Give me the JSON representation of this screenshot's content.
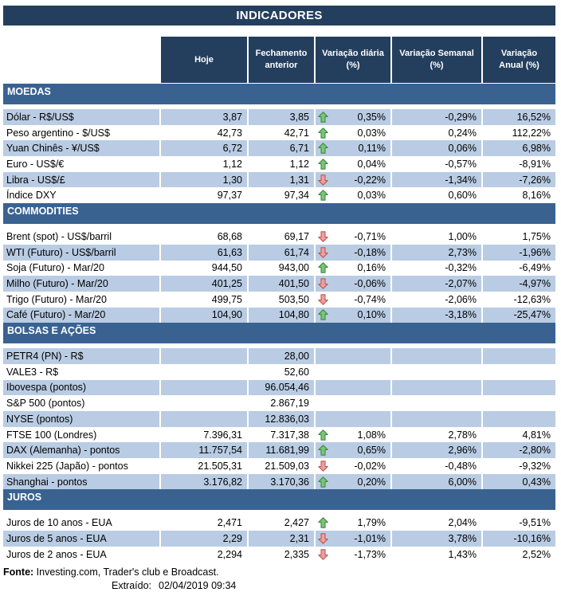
{
  "title": "INDICADORES",
  "columns": [
    "Hoje",
    "Fechamento\nanterior",
    "Variação diária\n(%)",
    "Variação Semanal\n(%)",
    "Variação\nAnual (%)"
  ],
  "colors": {
    "header_navy": "#243f5e",
    "section_blue": "#396291",
    "stripe_blue": "#b9cce3",
    "arrow_up_fill": "#7cc47c",
    "arrow_up_stroke": "#3f8a3f",
    "arrow_down_fill": "#eda0a0",
    "arrow_down_stroke": "#bf5654"
  },
  "icons": {
    "up": "arrow-up-icon (green up arrow)",
    "down": "arrow-down-icon (red down arrow)"
  },
  "sections": [
    {
      "name": "MOEDAS",
      "rows": [
        {
          "label": "Dólar - R$/US$",
          "hoje": "3,87",
          "fechamento": "3,85",
          "arrow": "up",
          "diaria": "0,35%",
          "semanal": "-0,29%",
          "anual": "16,52%"
        },
        {
          "label": "Peso argentino - $/US$",
          "hoje": "42,73",
          "fechamento": "42,71",
          "arrow": "up",
          "diaria": "0,03%",
          "semanal": "0,24%",
          "anual": "112,22%"
        },
        {
          "label": "Yuan Chinês - ¥/US$",
          "hoje": "6,72",
          "fechamento": "6,71",
          "arrow": "up",
          "diaria": "0,11%",
          "semanal": "0,06%",
          "anual": "6,98%"
        },
        {
          "label": "Euro - US$/€",
          "hoje": "1,12",
          "fechamento": "1,12",
          "arrow": "up",
          "diaria": "0,04%",
          "semanal": "-0,57%",
          "anual": "-8,91%"
        },
        {
          "label": "Libra - US$/£",
          "hoje": "1,30",
          "fechamento": "1,31",
          "arrow": "down",
          "diaria": "-0,22%",
          "semanal": "-1,34%",
          "anual": "-7,26%"
        },
        {
          "label": "Índice DXY",
          "hoje": "97,37",
          "fechamento": "97,34",
          "arrow": "up",
          "diaria": "0,03%",
          "semanal": "0,60%",
          "anual": "8,16%"
        }
      ]
    },
    {
      "name": "COMMODITIES",
      "rows": [
        {
          "label": "Brent (spot) - US$/barril",
          "hoje": "68,68",
          "fechamento": "69,17",
          "arrow": "down",
          "diaria": "-0,71%",
          "semanal": "1,00%",
          "anual": "1,75%"
        },
        {
          "label": "WTI (Futuro) - US$/barril",
          "hoje": "61,63",
          "fechamento": "61,74",
          "arrow": "down",
          "diaria": "-0,18%",
          "semanal": "2,73%",
          "anual": "-1,96%"
        },
        {
          "label": "Soja (Futuro) - Mar/20",
          "hoje": "944,50",
          "fechamento": "943,00",
          "arrow": "up",
          "diaria": "0,16%",
          "semanal": "-0,32%",
          "anual": "-6,49%"
        },
        {
          "label": "Milho (Futuro) - Mar/20",
          "hoje": "401,25",
          "fechamento": "401,50",
          "arrow": "down",
          "diaria": "-0,06%",
          "semanal": "-2,07%",
          "anual": "-4,97%"
        },
        {
          "label": "Trigo (Futuro) - Mar/20",
          "hoje": "499,75",
          "fechamento": "503,50",
          "arrow": "down",
          "diaria": "-0,74%",
          "semanal": "-2,06%",
          "anual": "-12,63%"
        },
        {
          "label": "Café (Futuro) - Mar/20",
          "hoje": "104,90",
          "fechamento": "104,80",
          "arrow": "up",
          "diaria": "0,10%",
          "semanal": "-3,18%",
          "anual": "-25,47%"
        }
      ]
    },
    {
      "name": "BOLSAS E AÇÕES",
      "rows": [
        {
          "label": "PETR4 (PN) - R$",
          "hoje": "",
          "fechamento": "28,00",
          "arrow": "",
          "diaria": "",
          "semanal": "",
          "anual": ""
        },
        {
          "label": "VALE3 - R$",
          "hoje": "",
          "fechamento": "52,60",
          "arrow": "",
          "diaria": "",
          "semanal": "",
          "anual": ""
        },
        {
          "label": "Ibovespa (pontos)",
          "hoje": "",
          "fechamento": "96.054,46",
          "arrow": "",
          "diaria": "",
          "semanal": "",
          "anual": ""
        },
        {
          "label": "S&P 500 (pontos)",
          "hoje": "",
          "fechamento": "2.867,19",
          "arrow": "",
          "diaria": "",
          "semanal": "",
          "anual": ""
        },
        {
          "label": "NYSE (pontos)",
          "hoje": "",
          "fechamento": "12.836,03",
          "arrow": "",
          "diaria": "",
          "semanal": "",
          "anual": ""
        },
        {
          "label": "FTSE 100 (Londres)",
          "hoje": "7.396,31",
          "fechamento": "7.317,38",
          "arrow": "up",
          "diaria": "1,08%",
          "semanal": "2,78%",
          "anual": "4,81%"
        },
        {
          "label": "DAX (Alemanha) - pontos",
          "hoje": "11.757,54",
          "fechamento": "11.681,99",
          "arrow": "up",
          "diaria": "0,65%",
          "semanal": "2,96%",
          "anual": "-2,80%"
        },
        {
          "label": "Nikkei 225 (Japão) - pontos",
          "hoje": "21.505,31",
          "fechamento": "21.509,03",
          "arrow": "down",
          "diaria": "-0,02%",
          "semanal": "-0,48%",
          "anual": "-9,32%"
        },
        {
          "label": "Shanghai - pontos",
          "hoje": "3.176,82",
          "fechamento": "3.170,36",
          "arrow": "up",
          "diaria": "0,20%",
          "semanal": "6,00%",
          "anual": "0,43%"
        }
      ]
    },
    {
      "name": "JUROS",
      "rows": [
        {
          "label": "Juros de 10 anos - EUA",
          "hoje": "2,471",
          "fechamento": "2,427",
          "arrow": "up",
          "diaria": "1,79%",
          "semanal": "2,04%",
          "anual": "-9,51%"
        },
        {
          "label": "Juros de 5 anos - EUA",
          "hoje": "2,29",
          "fechamento": "2,31",
          "arrow": "down",
          "diaria": "-1,01%",
          "semanal": "3,78%",
          "anual": "-10,16%"
        },
        {
          "label": "Juros de 2 anos - EUA",
          "hoje": "2,294",
          "fechamento": "2,335",
          "arrow": "down",
          "diaria": "-1,73%",
          "semanal": "1,43%",
          "anual": "2,52%"
        }
      ]
    }
  ],
  "footer": {
    "fonte_label": "Fonte:",
    "fonte_text": " Investing.com, Trader's club e Broadcast.",
    "extraido_label": "Extraído:",
    "extraido_value": "02/04/2019 09:34"
  }
}
